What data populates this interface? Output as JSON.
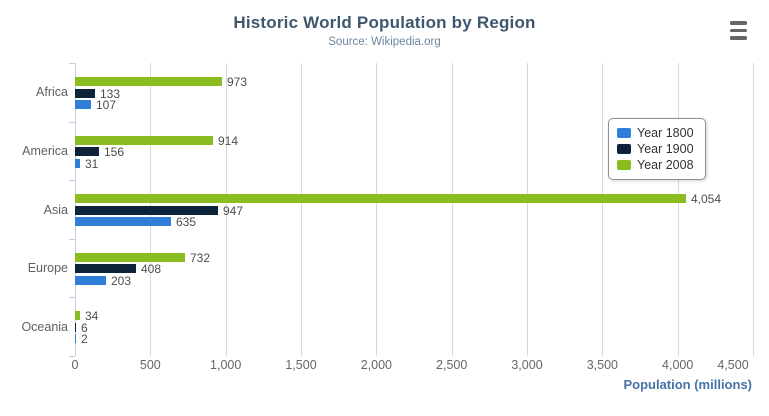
{
  "chart_data": {
    "type": "bar",
    "orientation": "horizontal",
    "title": "Historic World Population by Region",
    "subtitle": "Source: Wikipedia.org",
    "xlabel": "Population (millions)",
    "categories": [
      "Africa",
      "America",
      "Asia",
      "Europe",
      "Oceania"
    ],
    "series": [
      {
        "name": "Year 1800",
        "color": "#2f7ed8",
        "values": [
          107,
          31,
          635,
          203,
          2
        ]
      },
      {
        "name": "Year 1900",
        "color": "#0d233a",
        "values": [
          133,
          156,
          947,
          408,
          6
        ]
      },
      {
        "name": "Year 2008",
        "color": "#8bbc21",
        "values": [
          973,
          914,
          4054,
          732,
          34
        ]
      }
    ],
    "bar_order_top_to_bottom": [
      "Year 2008",
      "Year 1900",
      "Year 1800"
    ],
    "data_labels": {
      "Year 1800": [
        "107",
        "31",
        "635",
        "203",
        "2"
      ],
      "Year 1900": [
        "133",
        "156",
        "947",
        "408",
        "6"
      ],
      "Year 2008": [
        "973",
        "914",
        "4,054",
        "732",
        "34"
      ]
    },
    "xlim": [
      0,
      4500
    ],
    "x_ticks": [
      {
        "value": 0,
        "label": "0"
      },
      {
        "value": 500,
        "label": "500"
      },
      {
        "value": 1000,
        "label": "1,000"
      },
      {
        "value": 1500,
        "label": "1,500"
      },
      {
        "value": 2000,
        "label": "2,000"
      },
      {
        "value": 2500,
        "label": "2,500"
      },
      {
        "value": 3000,
        "label": "3,000"
      },
      {
        "value": 3500,
        "label": "3,500"
      },
      {
        "value": 4000,
        "label": "4,000"
      },
      {
        "value": 4500,
        "label": "4,500"
      }
    ],
    "grid": true,
    "legend_position": "top-right",
    "legend_items": [
      "Year 1800",
      "Year 1900",
      "Year 2008"
    ]
  },
  "icons": {
    "export_menu": "hamburger-menu"
  },
  "colors": {
    "background": "#ffffff",
    "title": "#3e576f",
    "subtitle": "#6d869f",
    "axis_title": "#4572a7",
    "axis_labels": "#666666",
    "category_labels": "#606060",
    "data_labels": "#4d4d4d",
    "grid_line": "#d8d8d8",
    "category_axis_line": "#c0d0e0",
    "legend_border": "#909090",
    "menu_icon": "#666666",
    "series_blue": "#2f7ed8",
    "series_navy": "#0d233a",
    "series_green": "#8bbc21"
  }
}
